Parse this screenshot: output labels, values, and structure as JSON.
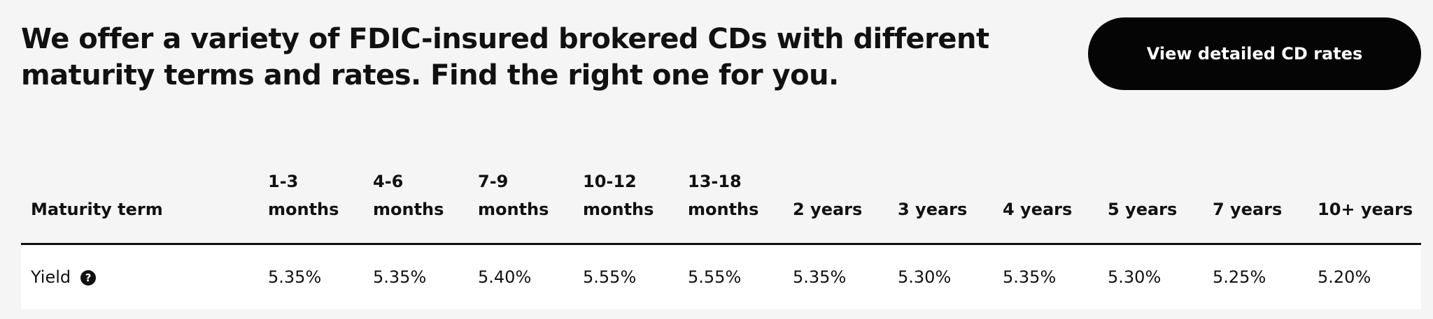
{
  "headline": "We offer a variety of FDIC-insured brokered CDs with different maturity terms and rates. Find the right one for you.",
  "cta_label": "View detailed CD rates",
  "table": {
    "row_header": "Maturity term",
    "row_label": "Yield",
    "help_icon": "?",
    "columns": [
      {
        "term_line1": "1-3",
        "term_line2": "months",
        "yield": "5.35%"
      },
      {
        "term_line1": "4-6",
        "term_line2": "months",
        "yield": "5.35%"
      },
      {
        "term_line1": "7-9",
        "term_line2": "months",
        "yield": "5.40%"
      },
      {
        "term_line1": "10-12",
        "term_line2": "months",
        "yield": "5.55%"
      },
      {
        "term_line1": "13-18",
        "term_line2": "months",
        "yield": "5.55%"
      },
      {
        "term_line1": "",
        "term_line2": "2 years",
        "yield": "5.35%"
      },
      {
        "term_line1": "",
        "term_line2": "3 years",
        "yield": "5.30%"
      },
      {
        "term_line1": "",
        "term_line2": "4 years",
        "yield": "5.35%"
      },
      {
        "term_line1": "",
        "term_line2": "5 years",
        "yield": "5.30%"
      },
      {
        "term_line1": "",
        "term_line2": "7 years",
        "yield": "5.25%"
      },
      {
        "term_line1": "",
        "term_line2": "10+ years",
        "yield": "5.20%"
      }
    ]
  }
}
